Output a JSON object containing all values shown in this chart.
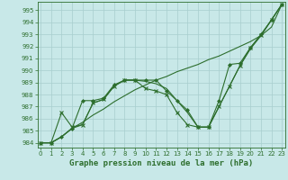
{
  "background_color": "#c8e8e8",
  "grid_color": "#a8cece",
  "line_color": "#2d6e2d",
  "title": "Graphe pression niveau de la mer (hPa)",
  "title_fontsize": 6.5,
  "xlim": [
    -0.3,
    23.3
  ],
  "ylim": [
    983.6,
    995.7
  ],
  "yticks": [
    984,
    985,
    986,
    987,
    988,
    989,
    990,
    991,
    992,
    993,
    994,
    995
  ],
  "xticks": [
    0,
    1,
    2,
    3,
    4,
    5,
    6,
    7,
    8,
    9,
    10,
    11,
    12,
    13,
    14,
    15,
    16,
    17,
    18,
    19,
    20,
    21,
    22,
    23
  ],
  "line1": {
    "x": [
      0,
      1,
      2,
      3,
      4,
      5,
      6,
      7,
      8,
      9,
      10,
      11,
      12,
      13,
      14,
      15,
      16,
      17,
      18,
      19,
      20,
      21,
      22,
      23
    ],
    "y": [
      984.0,
      984.0,
      984.5,
      985.2,
      985.7,
      986.3,
      986.8,
      987.4,
      987.9,
      988.4,
      988.8,
      989.2,
      989.5,
      989.9,
      990.2,
      990.5,
      990.9,
      991.2,
      991.6,
      992.0,
      992.4,
      992.9,
      993.6,
      995.5
    ],
    "marker": null
  },
  "line2": {
    "x": [
      0,
      1,
      2,
      3,
      4,
      5,
      6,
      7,
      8,
      9,
      10,
      11,
      12,
      13,
      14,
      15,
      16,
      17,
      18,
      19,
      20,
      21,
      22,
      23
    ],
    "y": [
      984.0,
      984.0,
      984.5,
      985.2,
      985.5,
      987.3,
      987.6,
      988.7,
      989.2,
      989.2,
      989.1,
      988.9,
      988.5,
      987.5,
      986.5,
      985.3,
      985.3,
      987.0,
      988.7,
      990.4,
      991.8,
      992.9,
      994.2,
      995.5
    ],
    "marker": null
  },
  "line3_diamond": {
    "x": [
      0,
      1,
      2,
      3,
      4,
      5,
      6,
      7,
      8,
      9,
      10,
      11,
      12,
      13,
      14,
      15,
      16,
      17,
      18,
      19,
      20,
      21,
      22,
      23
    ],
    "y": [
      984.0,
      984.0,
      984.5,
      985.2,
      987.5,
      987.5,
      987.7,
      988.8,
      989.2,
      989.2,
      989.2,
      989.2,
      988.3,
      987.5,
      986.7,
      985.3,
      985.3,
      987.5,
      990.5,
      990.6,
      991.9,
      993.0,
      994.2,
      995.5
    ],
    "marker": "D",
    "markersize": 2.0
  },
  "line4_cross": {
    "x": [
      0,
      1,
      2,
      3,
      4,
      5,
      6,
      7,
      8,
      9,
      10,
      11,
      12,
      13,
      14,
      15,
      16,
      17,
      18,
      19,
      20,
      21,
      22,
      23
    ],
    "y": [
      984.0,
      984.0,
      986.5,
      985.3,
      985.5,
      987.3,
      987.6,
      988.7,
      989.2,
      989.2,
      988.5,
      988.3,
      988.0,
      986.5,
      985.5,
      985.3,
      985.3,
      987.0,
      988.7,
      990.4,
      991.9,
      992.9,
      994.2,
      995.5
    ],
    "marker": "x",
    "markersize": 3.0
  }
}
